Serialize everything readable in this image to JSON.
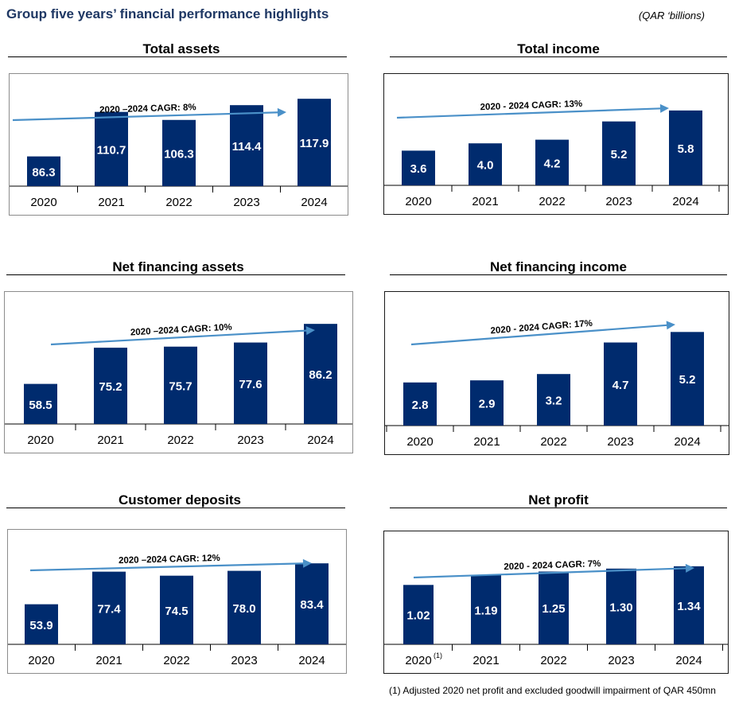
{
  "header": {
    "title": "Group five years’ financial performance highlights",
    "units": "(QAR ‘billions)"
  },
  "colors": {
    "bar": "#002b6e",
    "arrow": "#4a90c8",
    "title": "#1f3864"
  },
  "footnote": "(1)  Adjusted 2020 net profit and excluded goodwill impairment of QAR 450mn",
  "chart_data": [
    {
      "type": "bar",
      "title": "Total assets",
      "categories": [
        "2020",
        "2021",
        "2022",
        "2023",
        "2024"
      ],
      "values": [
        86.3,
        110.7,
        106.3,
        114.4,
        117.9
      ],
      "data_labels": [
        "86.3",
        "110.7",
        "106.3",
        "114.4",
        "117.9"
      ],
      "ylim": [
        70,
        128
      ],
      "annotation": "2020 –2024 CAGR: 8%"
    },
    {
      "type": "bar",
      "title": "Total income",
      "categories": [
        "2020",
        "2021",
        "2022",
        "2023",
        "2024"
      ],
      "values": [
        3.6,
        4.0,
        4.2,
        5.2,
        5.8
      ],
      "data_labels": [
        "3.6",
        "4.0",
        "4.2",
        "5.2",
        "5.8"
      ],
      "ylim": [
        1.7,
        7.45
      ],
      "annotation": "2020 - 2024 CAGR: 13%"
    },
    {
      "type": "bar",
      "title": "Net financing assets",
      "categories": [
        "2020",
        "2021",
        "2022",
        "2023",
        "2024"
      ],
      "values": [
        58.5,
        75.2,
        75.7,
        77.6,
        86.2
      ],
      "data_labels": [
        "58.5",
        "75.2",
        "75.7",
        "77.6",
        "86.2"
      ],
      "ylim": [
        40,
        98
      ],
      "annotation": "2020 –2024 CAGR: 10%"
    },
    {
      "type": "bar",
      "title": "Net financing income",
      "categories": [
        "2020",
        "2021",
        "2022",
        "2023",
        "2024"
      ],
      "values": [
        2.8,
        2.9,
        3.2,
        4.7,
        5.2
      ],
      "data_labels": [
        "2.8",
        "2.9",
        "3.2",
        "4.7",
        "5.2"
      ],
      "ylim": [
        0.75,
        6.8
      ],
      "annotation": "2020 - 2024 CAGR: 17%"
    },
    {
      "type": "bar",
      "title": "Customer deposits",
      "categories": [
        "2020",
        "2021",
        "2022",
        "2023",
        "2024"
      ],
      "values": [
        53.9,
        77.4,
        74.5,
        78.0,
        83.4
      ],
      "data_labels": [
        "53.9",
        "77.4",
        "74.5",
        "78.0",
        "83.4"
      ],
      "ylim": [
        25,
        103
      ],
      "annotation": "2020 –2024 CAGR: 12%"
    },
    {
      "type": "bar",
      "title": "Net profit",
      "categories": [
        "2020",
        "2021",
        "2022",
        "2023",
        "2024"
      ],
      "category_notes": [
        "(1)",
        "",
        "",
        "",
        ""
      ],
      "values": [
        1.02,
        1.19,
        1.25,
        1.3,
        1.34
      ],
      "data_labels": [
        "1.02",
        "1.19",
        "1.25",
        "1.30",
        "1.34"
      ],
      "ylim": [
        0.0,
        1.83
      ],
      "annotation": "2020 - 2024 CAGR: 7%"
    }
  ]
}
